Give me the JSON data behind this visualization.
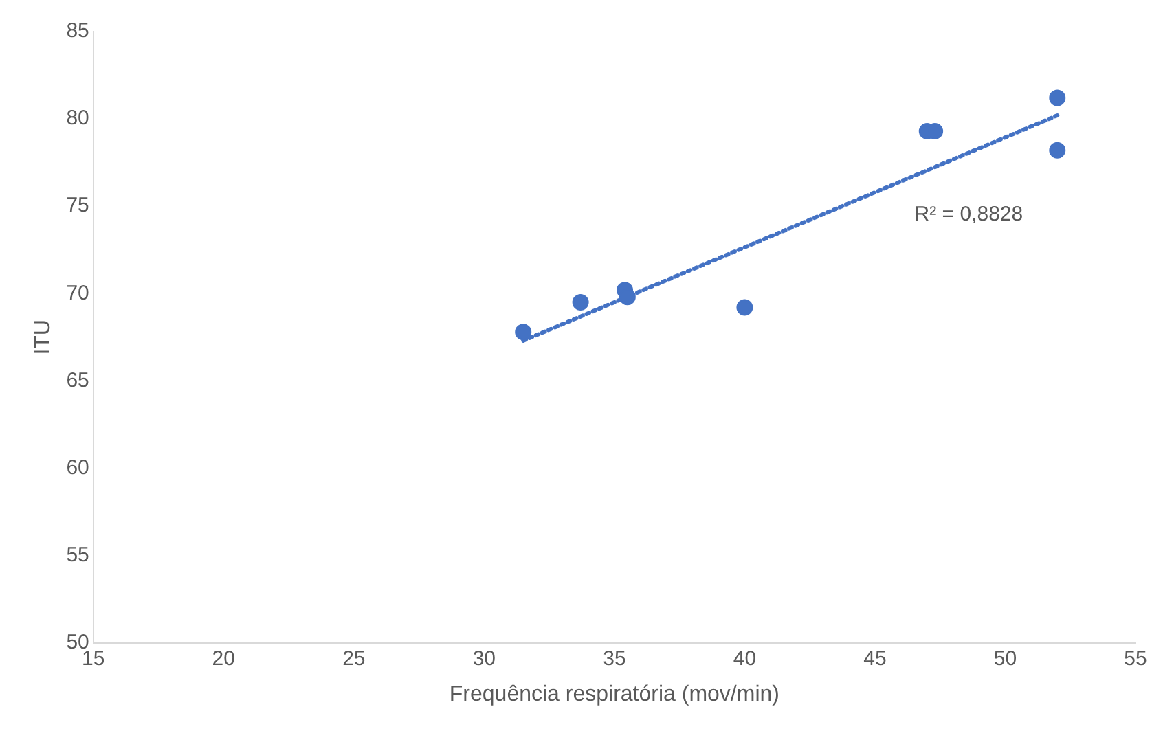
{
  "chart_data": {
    "type": "scatter",
    "xlabel": "Frequência respiratória (mov/min)",
    "ylabel": "ITU",
    "xlim": [
      15,
      55
    ],
    "xticks": [
      15,
      20,
      25,
      30,
      35,
      40,
      45,
      50,
      55
    ],
    "ylim": [
      50,
      85
    ],
    "yticks": [
      50,
      55,
      60,
      65,
      70,
      75,
      80,
      85
    ],
    "grid": false,
    "legend": false,
    "marker": "circle",
    "series": [
      {
        "color": "#4472c4",
        "x": [
          31.5,
          33.7,
          35.4,
          35.5,
          40.0,
          47.0,
          47.3,
          52.0,
          52.0
        ],
        "values": [
          67.8,
          69.5,
          70.2,
          69.8,
          69.2,
          79.3,
          79.3,
          81.2,
          78.2
        ]
      },
      {
        "type": "line",
        "color": "#4472c4",
        "line_style": "dotted",
        "marker": "none",
        "x": [
          31.5,
          52.0
        ],
        "values": [
          67.3,
          80.2
        ]
      }
    ],
    "annotations": [
      "R² = 0,8828"
    ]
  }
}
